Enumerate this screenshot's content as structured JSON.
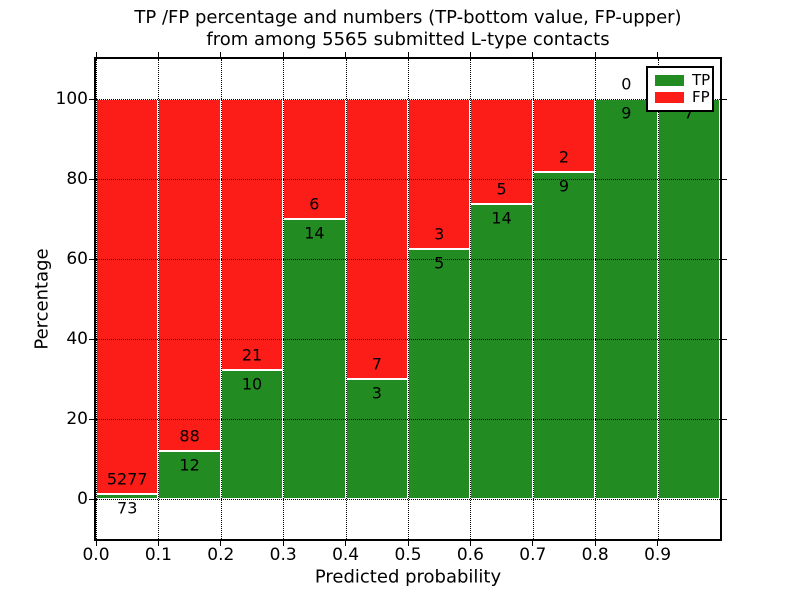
{
  "title": {
    "line1": "TP /FP percentage and numbers (TP-bottom value, FP-upper)",
    "line2": "from among 5565 submitted L-type contacts"
  },
  "axes": {
    "xlabel": "Predicted probability",
    "ylabel": "Percentage",
    "xtick_labels": [
      "0.0",
      "0.1",
      "0.2",
      "0.3",
      "0.4",
      "0.5",
      "0.6",
      "0.7",
      "0.8",
      "0.9"
    ],
    "ytick_labels": [
      "0",
      "20",
      "40",
      "60",
      "80",
      "100"
    ]
  },
  "legend": {
    "items": [
      {
        "label": "TP",
        "color": "#228B22"
      },
      {
        "label": "FP",
        "color": "#FC1D18"
      }
    ]
  },
  "chart_data": {
    "type": "bar",
    "stacked": true,
    "normalized_to_percent": true,
    "title": "TP /FP percentage and numbers (TP-bottom value, FP-upper) from among 5565 submitted L-type contacts",
    "xlabel": "Predicted probability",
    "ylabel": "Percentage",
    "bin_edges": [
      0.0,
      0.1,
      0.2,
      0.3,
      0.4,
      0.5,
      0.6,
      0.7,
      0.8,
      0.9,
      1.0
    ],
    "xticks": [
      0.0,
      0.1,
      0.2,
      0.3,
      0.4,
      0.5,
      0.6,
      0.7,
      0.8,
      0.9
    ],
    "yticks": [
      0,
      20,
      40,
      60,
      80,
      100
    ],
    "xlim": [
      0.0,
      1.0
    ],
    "ylim": [
      -10,
      110
    ],
    "grid": true,
    "grid_style": "dotted",
    "legend_position": "upper right",
    "series": [
      {
        "name": "TP",
        "color": "#228B22",
        "counts": [
          73,
          12,
          10,
          14,
          3,
          5,
          14,
          9,
          9,
          7
        ]
      },
      {
        "name": "FP",
        "color": "#FC1D18",
        "counts": [
          5277,
          88,
          21,
          6,
          7,
          3,
          5,
          2,
          0,
          0
        ]
      }
    ],
    "tp_percent": [
      1.4,
      12.0,
      32.3,
      70.0,
      30.0,
      62.5,
      73.7,
      81.8,
      100.0,
      100.0
    ],
    "total_contacts": 5565
  }
}
